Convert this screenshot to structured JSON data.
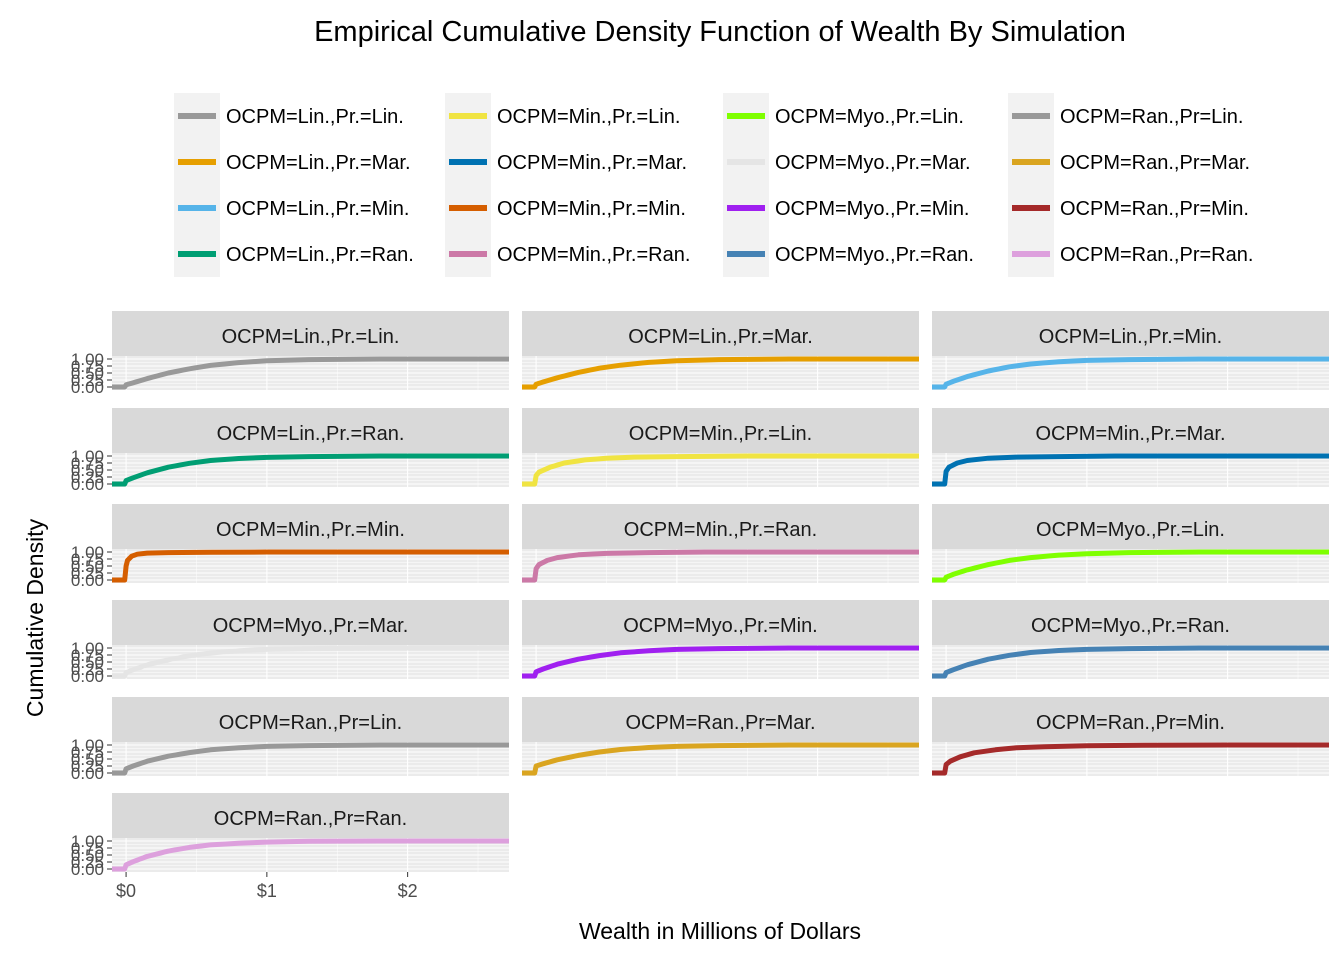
{
  "chart_data": {
    "type": "line",
    "title": "Empirical Cumulative Density Function of Wealth By Simulation",
    "xlabel": "Wealth in Millions of Dollars",
    "ylabel": "Cumulative Density",
    "xlim": [
      -0.1,
      2.72
    ],
    "ylim": [
      0,
      1
    ],
    "x_ticks": [
      0,
      1,
      2
    ],
    "x_tick_labels": [
      "$0",
      "$1",
      "$2"
    ],
    "y_ticks": [
      0,
      0.25,
      0.5,
      0.75,
      1
    ],
    "y_tick_labels": [
      "0.00",
      "0.25",
      "0.50",
      "0.75",
      "1.00"
    ],
    "grid": true,
    "legend_position": "top",
    "panels": [
      {
        "name": "OCPM=Lin.,Pr.=Lin.",
        "color": "#999999",
        "x": [
          -0.1,
          -0.01,
          0.0,
          0.05,
          0.15,
          0.3,
          0.45,
          0.6,
          0.8,
          1.0,
          1.3,
          1.8,
          2.72
        ],
        "y": [
          0.0,
          0.0,
          0.08,
          0.15,
          0.3,
          0.5,
          0.65,
          0.77,
          0.87,
          0.94,
          0.98,
          1.0,
          1.0
        ]
      },
      {
        "name": "OCPM=Lin.,Pr.=Mar.",
        "color": "#E69F00",
        "x": [
          -0.1,
          -0.01,
          0.0,
          0.05,
          0.15,
          0.3,
          0.45,
          0.6,
          0.8,
          1.0,
          1.3,
          1.8,
          2.72
        ],
        "y": [
          0.0,
          0.0,
          0.1,
          0.18,
          0.33,
          0.52,
          0.67,
          0.78,
          0.88,
          0.94,
          0.98,
          1.0,
          1.0
        ]
      },
      {
        "name": "OCPM=Lin.,Pr.=Min.",
        "color": "#56B4E9",
        "x": [
          -0.1,
          -0.01,
          0.0,
          0.05,
          0.15,
          0.3,
          0.45,
          0.6,
          0.8,
          1.0,
          1.3,
          1.8,
          2.72
        ],
        "y": [
          0.0,
          0.0,
          0.1,
          0.2,
          0.37,
          0.57,
          0.72,
          0.82,
          0.9,
          0.95,
          0.98,
          1.0,
          1.0
        ]
      },
      {
        "name": "OCPM=Lin.,Pr.=Ran.",
        "color": "#009E73",
        "x": [
          -0.1,
          -0.01,
          0.0,
          0.05,
          0.15,
          0.3,
          0.45,
          0.6,
          0.8,
          1.0,
          1.3,
          1.8,
          2.72
        ],
        "y": [
          0.0,
          0.0,
          0.12,
          0.22,
          0.4,
          0.6,
          0.74,
          0.84,
          0.91,
          0.95,
          0.98,
          1.0,
          1.0
        ]
      },
      {
        "name": "OCPM=Min.,Pr.=Lin.",
        "color": "#F0E442",
        "x": [
          -0.1,
          -0.01,
          0.0,
          0.02,
          0.1,
          0.2,
          0.35,
          0.5,
          0.7,
          1.0,
          1.5,
          2.72
        ],
        "y": [
          0.0,
          0.0,
          0.3,
          0.42,
          0.6,
          0.75,
          0.86,
          0.92,
          0.96,
          0.98,
          1.0,
          1.0
        ]
      },
      {
        "name": "OCPM=Min.,Pr.=Mar.",
        "color": "#0072B2",
        "x": [
          -0.1,
          -0.01,
          0.0,
          0.02,
          0.08,
          0.15,
          0.3,
          0.5,
          0.8,
          1.2,
          2.72
        ],
        "y": [
          0.0,
          0.0,
          0.45,
          0.6,
          0.75,
          0.84,
          0.92,
          0.96,
          0.98,
          1.0,
          1.0
        ]
      },
      {
        "name": "OCPM=Min.,Pr.=Min.",
        "color": "#D55E00",
        "x": [
          -0.1,
          -0.01,
          0.0,
          0.01,
          0.04,
          0.08,
          0.15,
          0.3,
          0.6,
          1.0,
          2.72
        ],
        "y": [
          0.0,
          0.0,
          0.5,
          0.7,
          0.85,
          0.92,
          0.96,
          0.98,
          0.99,
          1.0,
          1.0
        ]
      },
      {
        "name": "OCPM=Min.,Pr.=Ran.",
        "color": "#CC79A7",
        "x": [
          -0.1,
          -0.01,
          0.0,
          0.02,
          0.08,
          0.15,
          0.3,
          0.5,
          0.8,
          1.2,
          2.72
        ],
        "y": [
          0.0,
          0.0,
          0.4,
          0.55,
          0.7,
          0.8,
          0.9,
          0.95,
          0.98,
          1.0,
          1.0
        ]
      },
      {
        "name": "OCPM=Myo.,Pr.=Lin.",
        "color": "#7FFF00",
        "x": [
          -0.1,
          -0.01,
          0.0,
          0.05,
          0.15,
          0.3,
          0.45,
          0.6,
          0.8,
          1.0,
          1.3,
          1.8,
          2.72
        ],
        "y": [
          0.0,
          0.0,
          0.1,
          0.2,
          0.36,
          0.55,
          0.7,
          0.8,
          0.89,
          0.94,
          0.98,
          1.0,
          1.0
        ]
      },
      {
        "name": "OCPM=Myo.,Pr.=Mar.",
        "color": "#E5E5E5",
        "x": [
          -0.1,
          -0.01,
          0.0,
          0.05,
          0.15,
          0.3,
          0.45,
          0.6,
          0.8,
          1.0,
          1.3,
          1.8,
          2.72
        ],
        "y": [
          0.0,
          0.0,
          0.12,
          0.22,
          0.4,
          0.58,
          0.72,
          0.82,
          0.9,
          0.95,
          0.98,
          1.0,
          1.0
        ]
      },
      {
        "name": "OCPM=Myo.,Pr.=Min.",
        "color": "#A020F0",
        "x": [
          -0.1,
          -0.01,
          0.0,
          0.05,
          0.15,
          0.3,
          0.45,
          0.6,
          0.8,
          1.0,
          1.3,
          1.8,
          2.72
        ],
        "y": [
          0.0,
          0.0,
          0.15,
          0.25,
          0.42,
          0.6,
          0.73,
          0.83,
          0.9,
          0.95,
          0.98,
          1.0,
          1.0
        ]
      },
      {
        "name": "OCPM=Myo.,Pr.=Ran.",
        "color": "#4682B4",
        "x": [
          -0.1,
          -0.01,
          0.0,
          0.05,
          0.15,
          0.3,
          0.45,
          0.6,
          0.8,
          1.0,
          1.3,
          1.8,
          2.72
        ],
        "y": [
          0.0,
          0.0,
          0.12,
          0.22,
          0.4,
          0.6,
          0.74,
          0.84,
          0.91,
          0.95,
          0.98,
          1.0,
          1.0
        ]
      },
      {
        "name": "OCPM=Ran.,Pr=Lin.",
        "color": "#999999",
        "x": [
          -0.1,
          -0.01,
          0.0,
          0.05,
          0.15,
          0.3,
          0.45,
          0.6,
          0.8,
          1.0,
          1.3,
          1.8,
          2.72
        ],
        "y": [
          0.0,
          0.0,
          0.15,
          0.25,
          0.42,
          0.6,
          0.73,
          0.83,
          0.9,
          0.95,
          0.98,
          1.0,
          1.0
        ]
      },
      {
        "name": "OCPM=Ran.,Pr=Mar.",
        "color": "#DAA520",
        "x": [
          -0.1,
          -0.01,
          0.0,
          0.05,
          0.15,
          0.3,
          0.45,
          0.6,
          0.8,
          1.0,
          1.3,
          1.8,
          2.72
        ],
        "y": [
          0.0,
          0.0,
          0.25,
          0.33,
          0.47,
          0.63,
          0.75,
          0.84,
          0.91,
          0.95,
          0.98,
          1.0,
          1.0
        ]
      },
      {
        "name": "OCPM=Ran.,Pr=Min.",
        "color": "#A52A2A",
        "x": [
          -0.1,
          -0.01,
          0.0,
          0.03,
          0.1,
          0.2,
          0.35,
          0.5,
          0.7,
          1.0,
          1.4,
          2.0,
          2.72
        ],
        "y": [
          0.0,
          0.0,
          0.3,
          0.42,
          0.58,
          0.72,
          0.83,
          0.9,
          0.94,
          0.97,
          0.99,
          1.0,
          1.0
        ]
      },
      {
        "name": "OCPM=Ran.,Pr=Ran.",
        "color": "#DDA0DD",
        "x": [
          -0.1,
          -0.01,
          0.0,
          0.05,
          0.15,
          0.3,
          0.45,
          0.6,
          0.8,
          1.0,
          1.3,
          1.8,
          2.72
        ],
        "y": [
          0.0,
          0.0,
          0.15,
          0.26,
          0.45,
          0.64,
          0.77,
          0.86,
          0.92,
          0.96,
          0.99,
          1.0,
          1.0
        ]
      }
    ]
  }
}
